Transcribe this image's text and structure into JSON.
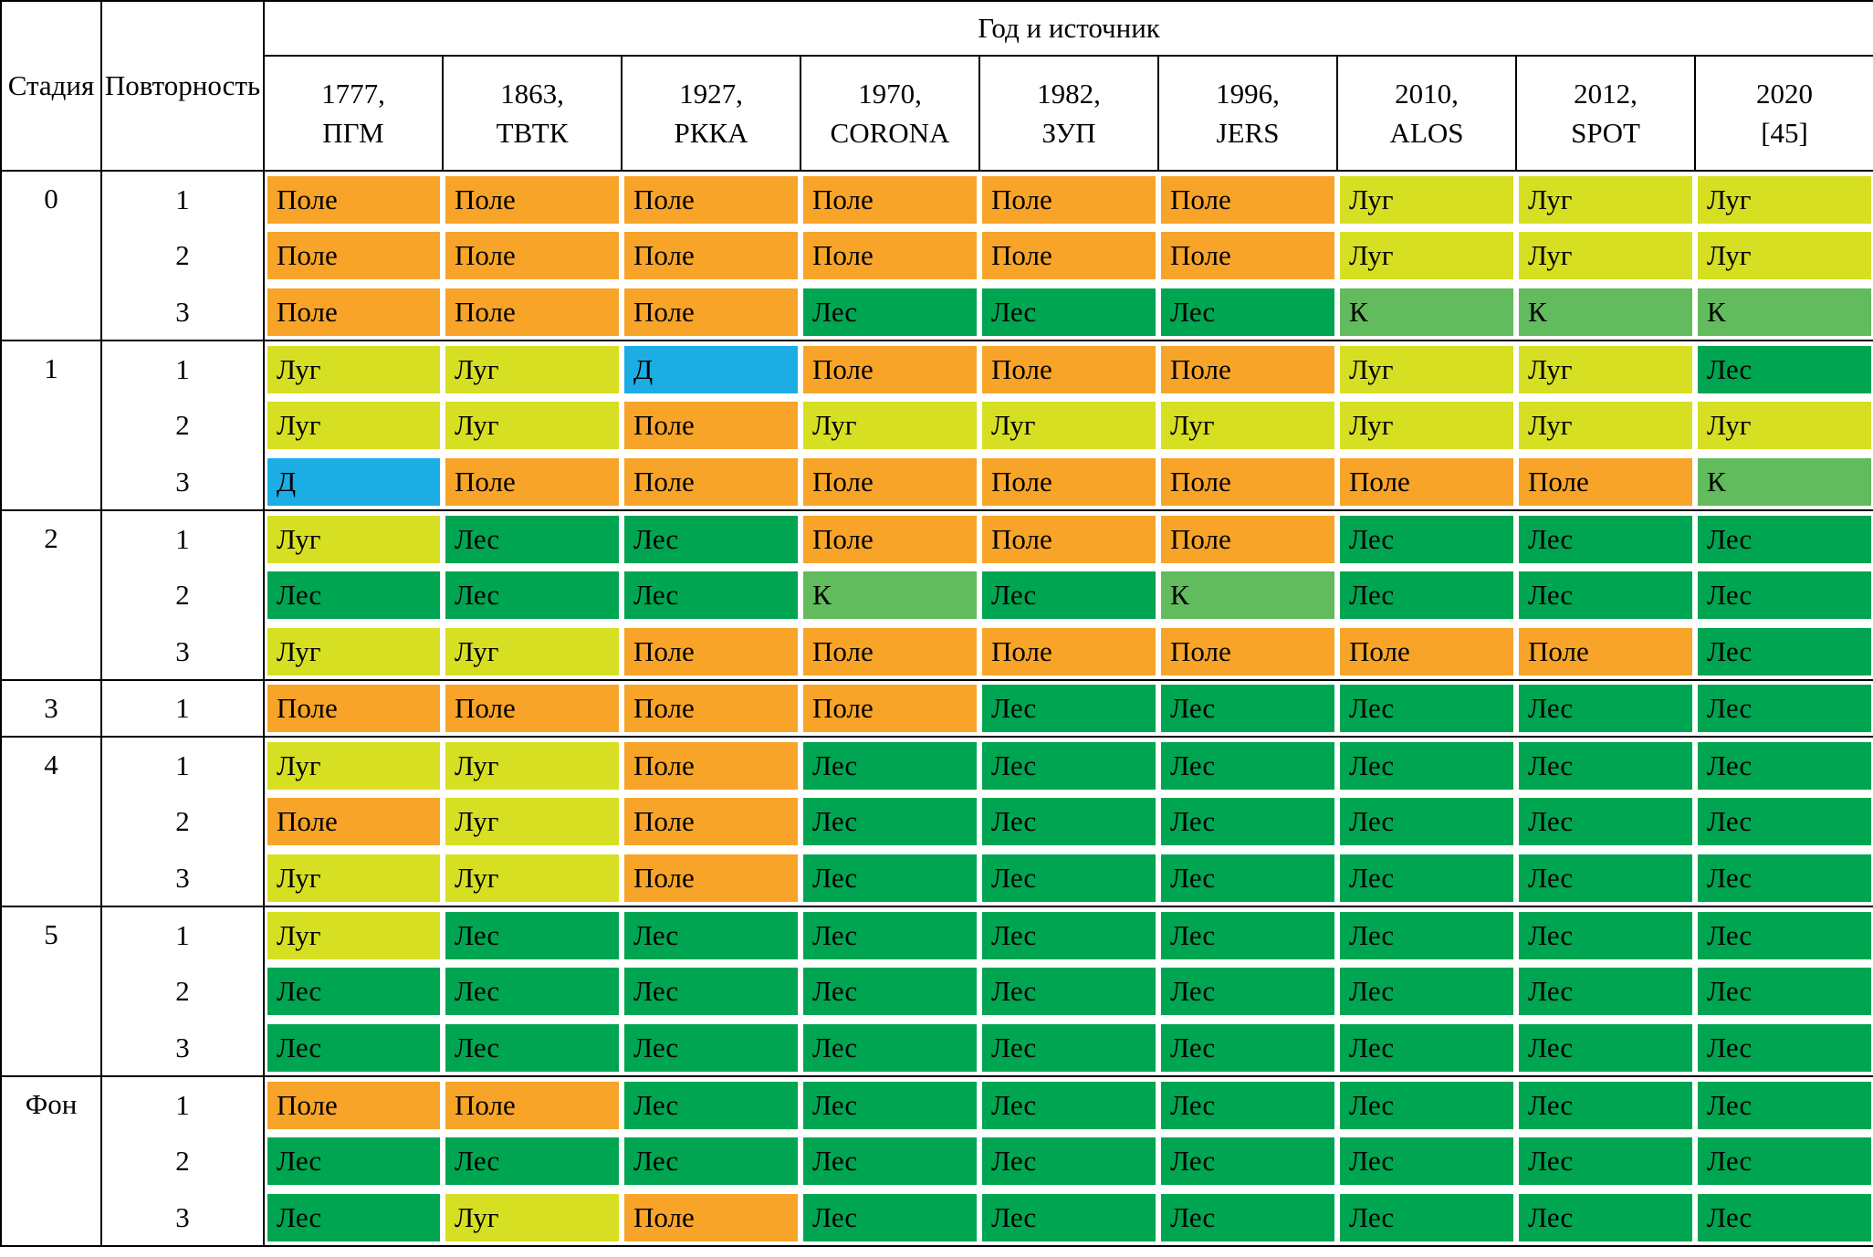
{
  "chart_data": {
    "type": "table",
    "title": "",
    "row_header_labels": [
      "Стадия",
      "Повторность"
    ],
    "column_group_label": "Год и источник",
    "columns": [
      {
        "year": "1777,",
        "source": "ПГМ"
      },
      {
        "year": "1863,",
        "source": "ТВТК"
      },
      {
        "year": "1927,",
        "source": "РККА"
      },
      {
        "year": "1970,",
        "source": "CORONA"
      },
      {
        "year": "1982,",
        "source": "ЗУП"
      },
      {
        "year": "1996,",
        "source": "JERS"
      },
      {
        "year": "2010,",
        "source": "ALOS"
      },
      {
        "year": "2012,",
        "source": "SPOT"
      },
      {
        "year": "2020",
        "source": "[45]"
      }
    ],
    "cell_categories": {
      "Поле": "#F7A429",
      "Луг": "#D7DF23",
      "Лес": "#00A551",
      "К": "#62BB5C",
      "Д": "#1CADE4"
    },
    "groups": [
      {
        "stage": "0",
        "rows": [
          {
            "rep": "1",
            "cells": [
              "Поле",
              "Поле",
              "Поле",
              "Поле",
              "Поле",
              "Поле",
              "Луг",
              "Луг",
              "Луг"
            ]
          },
          {
            "rep": "2",
            "cells": [
              "Поле",
              "Поле",
              "Поле",
              "Поле",
              "Поле",
              "Поле",
              "Луг",
              "Луг",
              "Луг"
            ]
          },
          {
            "rep": "3",
            "cells": [
              "Поле",
              "Поле",
              "Поле",
              "Лес",
              "Лес",
              "Лес",
              "К",
              "К",
              "К"
            ]
          }
        ]
      },
      {
        "stage": "1",
        "rows": [
          {
            "rep": "1",
            "cells": [
              "Луг",
              "Луг",
              "Д",
              "Поле",
              "Поле",
              "Поле",
              "Луг",
              "Луг",
              "Лес"
            ]
          },
          {
            "rep": "2",
            "cells": [
              "Луг",
              "Луг",
              "Поле",
              "Луг",
              "Луг",
              "Луг",
              "Луг",
              "Луг",
              "Луг"
            ]
          },
          {
            "rep": "3",
            "cells": [
              "Д",
              "Поле",
              "Поле",
              "Поле",
              "Поле",
              "Поле",
              "Поле",
              "Поле",
              "К"
            ]
          }
        ]
      },
      {
        "stage": "2",
        "rows": [
          {
            "rep": "1",
            "cells": [
              "Луг",
              "Лес",
              "Лес",
              "Поле",
              "Поле",
              "Поле",
              "Лес",
              "Лес",
              "Лес"
            ]
          },
          {
            "rep": "2",
            "cells": [
              "Лес",
              "Лес",
              "Лес",
              "К",
              "Лес",
              "К",
              "Лес",
              "Лес",
              "Лес"
            ]
          },
          {
            "rep": "3",
            "cells": [
              "Луг",
              "Луг",
              "Поле",
              "Поле",
              "Поле",
              "Поле",
              "Поле",
              "Поле",
              "Лес"
            ]
          }
        ]
      },
      {
        "stage": "3",
        "rows": [
          {
            "rep": "1",
            "cells": [
              "Поле",
              "Поле",
              "Поле",
              "Поле",
              "Лес",
              "Лес",
              "Лес",
              "Лес",
              "Лес"
            ]
          }
        ]
      },
      {
        "stage": "4",
        "rows": [
          {
            "rep": "1",
            "cells": [
              "Луг",
              "Луг",
              "Поле",
              "Лес",
              "Лес",
              "Лес",
              "Лес",
              "Лес",
              "Лес"
            ]
          },
          {
            "rep": "2",
            "cells": [
              "Поле",
              "Луг",
              "Поле",
              "Лес",
              "Лес",
              "Лес",
              "Лес",
              "Лес",
              "Лес"
            ]
          },
          {
            "rep": "3",
            "cells": [
              "Луг",
              "Луг",
              "Поле",
              "Лес",
              "Лес",
              "Лес",
              "Лес",
              "Лес",
              "Лес"
            ]
          }
        ]
      },
      {
        "stage": "5",
        "rows": [
          {
            "rep": "1",
            "cells": [
              "Луг",
              "Лес",
              "Лес",
              "Лес",
              "Лес",
              "Лес",
              "Лес",
              "Лес",
              "Лес"
            ]
          },
          {
            "rep": "2",
            "cells": [
              "Лес",
              "Лес",
              "Лес",
              "Лес",
              "Лес",
              "Лес",
              "Лес",
              "Лес",
              "Лес"
            ]
          },
          {
            "rep": "3",
            "cells": [
              "Лес",
              "Лес",
              "Лес",
              "Лес",
              "Лес",
              "Лес",
              "Лес",
              "Лес",
              "Лес"
            ]
          }
        ]
      },
      {
        "stage": "Фон",
        "rows": [
          {
            "rep": "1",
            "cells": [
              "Поле",
              "Поле",
              "Лес",
              "Лес",
              "Лес",
              "Лес",
              "Лес",
              "Лес",
              "Лес"
            ]
          },
          {
            "rep": "2",
            "cells": [
              "Лес",
              "Лес",
              "Лес",
              "Лес",
              "Лес",
              "Лес",
              "Лес",
              "Лес",
              "Лес"
            ]
          },
          {
            "rep": "3",
            "cells": [
              "Лес",
              "Луг",
              "Поле",
              "Лес",
              "Лес",
              "Лес",
              "Лес",
              "Лес",
              "Лес"
            ]
          }
        ]
      }
    ]
  }
}
